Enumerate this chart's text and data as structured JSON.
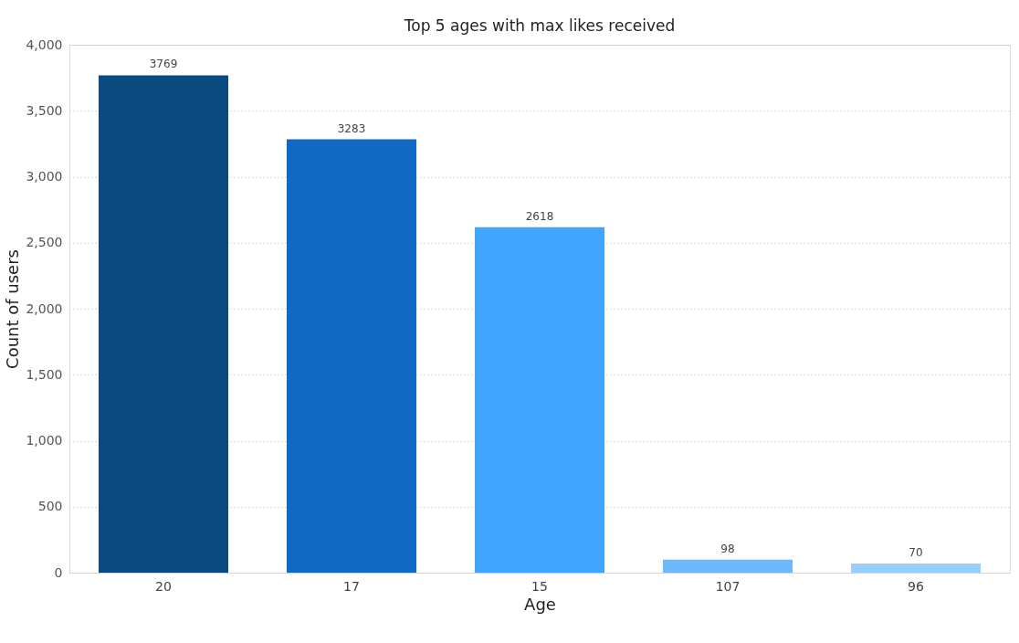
{
  "chart_data": {
    "type": "bar",
    "title": "Top 5 ages with max likes received",
    "xlabel": "Age",
    "ylabel": "Count of users",
    "categories": [
      "20",
      "17",
      "15",
      "107",
      "96"
    ],
    "values": [
      3769,
      3283,
      2618,
      98,
      70
    ],
    "colors": [
      "#0b4a80",
      "#1169c2",
      "#41a5fe",
      "#6db9fb",
      "#99cdfa"
    ],
    "ylim": [
      0,
      4000
    ],
    "yticks": [
      0,
      500,
      {
        "value": 1000,
        "label": "1,000"
      },
      {
        "value": 1500,
        "label": "1,500"
      },
      {
        "value": 2000,
        "label": "2,000"
      },
      {
        "value": 2500,
        "label": "2,500"
      },
      {
        "value": 3000,
        "label": "3,000"
      },
      {
        "value": 3500,
        "label": "3,500"
      },
      {
        "value": 4000,
        "label": "4,000"
      }
    ],
    "grid": "y",
    "data_labels": true
  }
}
